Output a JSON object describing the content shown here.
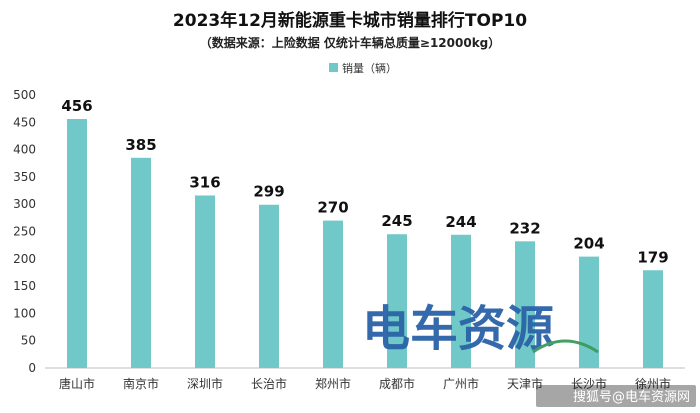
{
  "chart_data": {
    "type": "bar",
    "title": "2023年12月新能源重卡城市销量排行TOP10",
    "subtitle": "（数据来源：上险数据 仅统计车辆总质量≥12000kg）",
    "categories": [
      "唐山市",
      "南京市",
      "深圳市",
      "长治市",
      "郑州市",
      "成都市",
      "广州市",
      "天津市",
      "长沙市",
      "徐州市"
    ],
    "series": [
      {
        "name": "销量（辆）",
        "values": [
          456,
          385,
          316,
          299,
          270,
          245,
          244,
          232,
          204,
          179
        ]
      }
    ],
    "ylim": [
      0,
      500
    ],
    "yticks": [
      0,
      50,
      100,
      150,
      200,
      250,
      300,
      350,
      400,
      450,
      500
    ],
    "grid": false,
    "legend": "top-center",
    "data_labels": true,
    "bar_color": "#70c8c8",
    "axis_color": "#bfbfbf"
  },
  "watermark": {
    "text": "电车资源",
    "color": "#2a63a8"
  },
  "source_credit": "搜狐号@电车资源网"
}
